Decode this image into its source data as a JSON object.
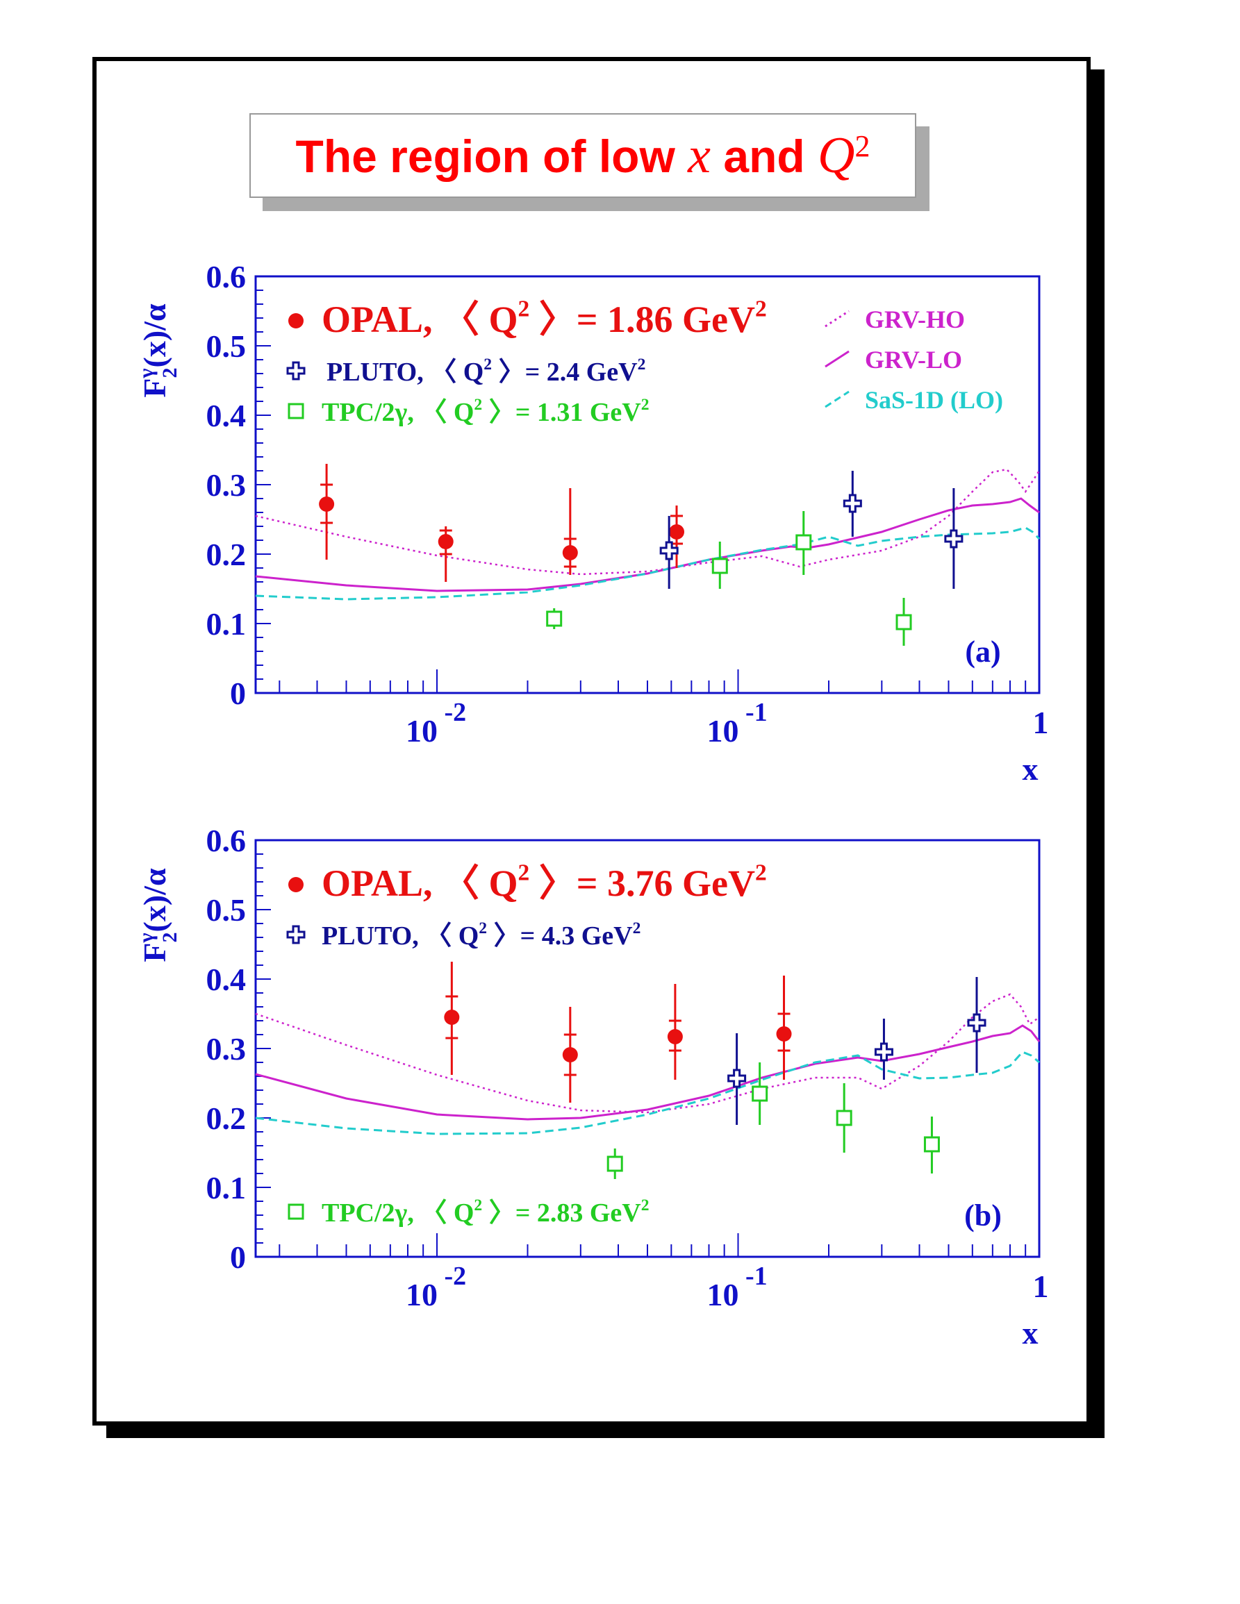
{
  "title": {
    "prefix": "The region of low",
    "var1": "x",
    "mid": "and",
    "var2": "Q",
    "sup": "2"
  },
  "colors": {
    "axis": "#1010c8",
    "opal": "#e81010",
    "pluto": "#101090",
    "tpc": "#22cc22",
    "grv_ho": "#cc22cc",
    "grv_lo": "#cc22cc",
    "sas": "#22cccc"
  },
  "chart_data": [
    {
      "type": "scatter",
      "panel_label": "(a)",
      "xscale": "log",
      "xlim": [
        0.0025,
        1
      ],
      "ylim": [
        0,
        0.6
      ],
      "x_ticklabels": [
        "10 -2",
        "10 -1",
        "1"
      ],
      "y_ticklabels": [
        "0",
        "0.1",
        "0.2",
        "0.3",
        "0.4",
        "0.5",
        "0.6"
      ],
      "xlabel": "x",
      "ylabel": "F2γ(x)/α",
      "ylabel_parts": {
        "main": "F",
        "sup": "γ",
        "sub": "2",
        "rest": "(x)/α"
      },
      "legend": {
        "opal": {
          "name": "OPAL, ",
          "q2_label": "〈 Q",
          "q2_sup": "2",
          "value": " 〉= 1.86 GeV",
          "unit_sup": "2"
        },
        "pluto": {
          "name": "PLUTO, ",
          "q2_label": "〈 Q",
          "q2_sup": "2",
          "value": " 〉= 2.4 GeV",
          "unit_sup": "2"
        },
        "tpc": {
          "name": "TPC/2γ, ",
          "q2_label": "〈 Q",
          "q2_sup": "2",
          "value": " 〉= 1.31 GeV",
          "unit_sup": "2"
        },
        "curves": [
          "GRV-HO",
          "GRV-LO",
          "SaS-1D (LO)"
        ]
      },
      "series": [
        {
          "name": "OPAL",
          "marker": "circle",
          "points": [
            {
              "x": 0.0043,
              "y": 0.272,
              "stat": [
                0.245,
                0.3
              ],
              "tot": [
                0.192,
                0.33
              ]
            },
            {
              "x": 0.0107,
              "y": 0.218,
              "stat": [
                0.2,
                0.234
              ],
              "tot": [
                0.16,
                0.24
              ]
            },
            {
              "x": 0.0277,
              "y": 0.202,
              "stat": [
                0.182,
                0.222
              ],
              "tot": [
                0.17,
                0.295
              ]
            },
            {
              "x": 0.0625,
              "y": 0.232,
              "stat": [
                0.215,
                0.255
              ],
              "tot": [
                0.18,
                0.27
              ]
            }
          ]
        },
        {
          "name": "PLUTO",
          "marker": "cross",
          "points": [
            {
              "x": 0.059,
              "y": 0.205,
              "tot": [
                0.15,
                0.255
              ]
            },
            {
              "x": 0.24,
              "y": 0.273,
              "tot": [
                0.225,
                0.32
              ]
            },
            {
              "x": 0.52,
              "y": 0.222,
              "tot": [
                0.15,
                0.295
              ]
            }
          ]
        },
        {
          "name": "TPC/2γ",
          "marker": "square",
          "points": [
            {
              "x": 0.0245,
              "y": 0.107,
              "tot": [
                0.092,
                0.122
              ]
            },
            {
              "x": 0.087,
              "y": 0.183,
              "tot": [
                0.15,
                0.218
              ]
            },
            {
              "x": 0.165,
              "y": 0.217,
              "tot": [
                0.17,
                0.262
              ]
            },
            {
              "x": 0.355,
              "y": 0.102,
              "tot": [
                0.068,
                0.137
              ]
            }
          ]
        }
      ],
      "curves": [
        {
          "name": "GRV-HO",
          "style": "dotted",
          "x": [
            0.0025,
            0.005,
            0.01,
            0.02,
            0.03,
            0.05,
            0.08,
            0.12,
            0.16,
            0.2,
            0.3,
            0.4,
            0.5,
            0.6,
            0.7,
            0.78,
            0.85,
            0.9,
            0.95,
            1.0
          ],
          "y": [
            0.255,
            0.225,
            0.198,
            0.178,
            0.171,
            0.175,
            0.188,
            0.197,
            0.182,
            0.192,
            0.205,
            0.225,
            0.255,
            0.29,
            0.318,
            0.322,
            0.305,
            0.29,
            0.305,
            0.32
          ]
        },
        {
          "name": "GRV-LO",
          "style": "solid",
          "x": [
            0.0025,
            0.005,
            0.01,
            0.02,
            0.03,
            0.05,
            0.08,
            0.12,
            0.15,
            0.17,
            0.2,
            0.3,
            0.4,
            0.5,
            0.6,
            0.7,
            0.8,
            0.87,
            0.93,
            1.0
          ],
          "y": [
            0.168,
            0.155,
            0.147,
            0.149,
            0.157,
            0.172,
            0.192,
            0.205,
            0.211,
            0.209,
            0.214,
            0.232,
            0.25,
            0.263,
            0.27,
            0.272,
            0.275,
            0.28,
            0.27,
            0.26
          ]
        },
        {
          "name": "SaS-1D (LO)",
          "style": "dashed",
          "x": [
            0.0025,
            0.005,
            0.01,
            0.02,
            0.03,
            0.05,
            0.08,
            0.12,
            0.16,
            0.2,
            0.25,
            0.3,
            0.4,
            0.5,
            0.6,
            0.7,
            0.8,
            0.9,
            0.95,
            1.0
          ],
          "y": [
            0.14,
            0.135,
            0.138,
            0.145,
            0.155,
            0.172,
            0.192,
            0.206,
            0.214,
            0.225,
            0.212,
            0.219,
            0.225,
            0.228,
            0.229,
            0.23,
            0.232,
            0.238,
            0.232,
            0.222
          ]
        }
      ]
    },
    {
      "type": "scatter",
      "panel_label": "(b)",
      "xscale": "log",
      "xlim": [
        0.0025,
        1
      ],
      "ylim": [
        0,
        0.6
      ],
      "x_ticklabels": [
        "10 -2",
        "10 -1",
        "1"
      ],
      "y_ticklabels": [
        "0",
        "0.1",
        "0.2",
        "0.3",
        "0.4",
        "0.5",
        "0.6"
      ],
      "xlabel": "x",
      "ylabel": "F2γ(x)/α",
      "ylabel_parts": {
        "main": "F",
        "sup": "γ",
        "sub": "2",
        "rest": "(x)/α"
      },
      "legend": {
        "opal": {
          "name": "OPAL, ",
          "q2_label": "〈 Q",
          "q2_sup": "2",
          "value": " 〉= 3.76 GeV",
          "unit_sup": "2"
        },
        "pluto": {
          "name": "PLUTO, ",
          "q2_label": "〈 Q",
          "q2_sup": "2",
          "value": " 〉= 4.3 GeV",
          "unit_sup": "2"
        },
        "tpc": {
          "name": "TPC/2γ, ",
          "q2_label": "〈 Q",
          "q2_sup": "2",
          "value": " 〉= 2.83 GeV",
          "unit_sup": "2"
        }
      },
      "series": [
        {
          "name": "OPAL",
          "marker": "circle",
          "points": [
            {
              "x": 0.0112,
              "y": 0.345,
              "stat": [
                0.315,
                0.375
              ],
              "tot": [
                0.262,
                0.425
              ]
            },
            {
              "x": 0.0277,
              "y": 0.291,
              "stat": [
                0.262,
                0.32
              ],
              "tot": [
                0.222,
                0.36
              ]
            },
            {
              "x": 0.0618,
              "y": 0.317,
              "stat": [
                0.297,
                0.34
              ],
              "tot": [
                0.255,
                0.393
              ]
            },
            {
              "x": 0.142,
              "y": 0.321,
              "stat": [
                0.297,
                0.35
              ],
              "tot": [
                0.255,
                0.405
              ]
            }
          ]
        },
        {
          "name": "PLUTO",
          "marker": "cross",
          "points": [
            {
              "x": 0.099,
              "y": 0.257,
              "tot": [
                0.19,
                0.322
              ]
            },
            {
              "x": 0.305,
              "y": 0.295,
              "tot": [
                0.255,
                0.343
              ]
            },
            {
              "x": 0.62,
              "y": 0.337,
              "tot": [
                0.265,
                0.403
              ]
            }
          ]
        },
        {
          "name": "TPC/2γ",
          "marker": "square",
          "points": [
            {
              "x": 0.039,
              "y": 0.134,
              "tot": [
                0.112,
                0.156
              ]
            },
            {
              "x": 0.118,
              "y": 0.235,
              "tot": [
                0.19,
                0.28
              ]
            },
            {
              "x": 0.225,
              "y": 0.2,
              "tot": [
                0.15,
                0.25
              ]
            },
            {
              "x": 0.44,
              "y": 0.162,
              "tot": [
                0.12,
                0.202
              ]
            }
          ]
        }
      ],
      "curves": [
        {
          "name": "GRV-HO",
          "style": "dotted",
          "x": [
            0.0025,
            0.005,
            0.01,
            0.02,
            0.03,
            0.05,
            0.08,
            0.12,
            0.18,
            0.25,
            0.3,
            0.4,
            0.5,
            0.6,
            0.7,
            0.8,
            0.87,
            0.93,
            1.0
          ],
          "y": [
            0.35,
            0.305,
            0.262,
            0.225,
            0.211,
            0.208,
            0.22,
            0.242,
            0.258,
            0.258,
            0.242,
            0.275,
            0.31,
            0.345,
            0.368,
            0.378,
            0.36,
            0.335,
            0.345
          ]
        },
        {
          "name": "GRV-LO",
          "style": "solid",
          "x": [
            0.0025,
            0.005,
            0.01,
            0.02,
            0.03,
            0.05,
            0.08,
            0.12,
            0.18,
            0.25,
            0.3,
            0.4,
            0.5,
            0.6,
            0.7,
            0.8,
            0.88,
            0.94,
            1.0
          ],
          "y": [
            0.263,
            0.228,
            0.205,
            0.198,
            0.2,
            0.212,
            0.232,
            0.258,
            0.278,
            0.287,
            0.282,
            0.292,
            0.302,
            0.31,
            0.318,
            0.322,
            0.333,
            0.325,
            0.31
          ]
        },
        {
          "name": "SaS-1D (LO)",
          "style": "dashed",
          "x": [
            0.0025,
            0.005,
            0.01,
            0.02,
            0.03,
            0.05,
            0.08,
            0.12,
            0.18,
            0.25,
            0.3,
            0.4,
            0.5,
            0.6,
            0.7,
            0.8,
            0.88,
            0.94,
            1.0
          ],
          "y": [
            0.2,
            0.185,
            0.177,
            0.178,
            0.186,
            0.205,
            0.228,
            0.255,
            0.28,
            0.29,
            0.27,
            0.257,
            0.258,
            0.262,
            0.265,
            0.275,
            0.295,
            0.29,
            0.28
          ]
        }
      ]
    }
  ]
}
